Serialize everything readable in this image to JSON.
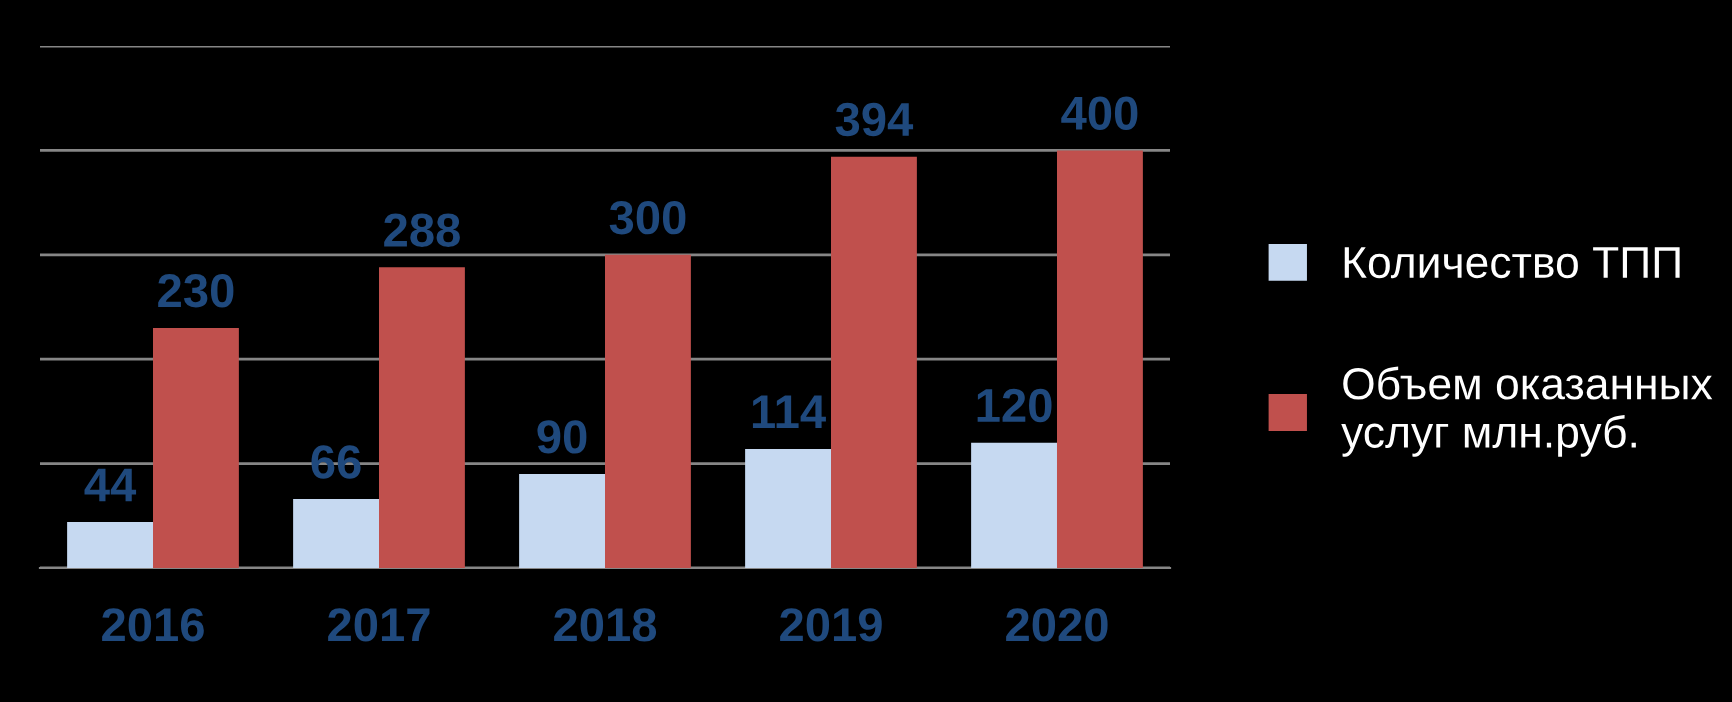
{
  "chart_data": {
    "type": "bar",
    "categories": [
      "2016",
      "2017",
      "2018",
      "2019",
      "2020"
    ],
    "series": [
      {
        "name": "Количество ТПП",
        "color": "#c6d9f1",
        "values": [
          44,
          66,
          90,
          114,
          120
        ]
      },
      {
        "name": "Объем оказанных услуг млн.руб.",
        "color": "#c0504d",
        "values": [
          230,
          288,
          300,
          394,
          400
        ]
      }
    ],
    "ylim": [
      0,
      500
    ],
    "yticks": [
      {
        "value": 0,
        "label": null
      },
      {
        "value": 100,
        "label": null
      },
      {
        "value": 200,
        "label": null
      },
      {
        "value": 300,
        "label": null
      },
      {
        "value": 400,
        "label": null
      },
      {
        "value": 500,
        "label": null
      }
    ],
    "tick_labels": "x",
    "grid": "y",
    "legend": "right",
    "data_labels": true
  }
}
